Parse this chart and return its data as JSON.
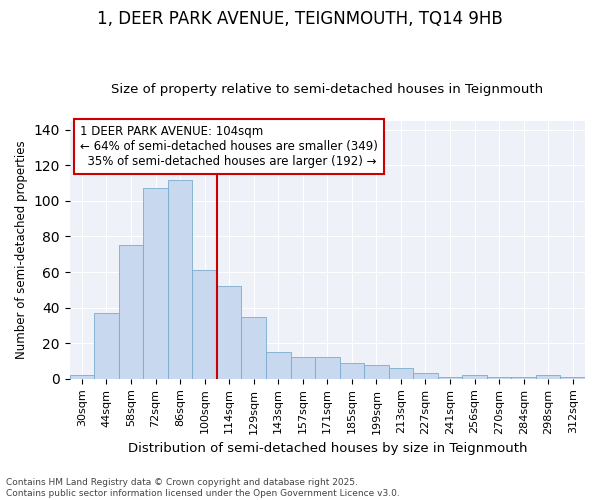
{
  "title": "1, DEER PARK AVENUE, TEIGNMOUTH, TQ14 9HB",
  "subtitle": "Size of property relative to semi-detached houses in Teignmouth",
  "xlabel": "Distribution of semi-detached houses by size in Teignmouth",
  "ylabel": "Number of semi-detached properties",
  "categories": [
    "30sqm",
    "44sqm",
    "58sqm",
    "72sqm",
    "86sqm",
    "100sqm",
    "114sqm",
    "129sqm",
    "143sqm",
    "157sqm",
    "171sqm",
    "185sqm",
    "199sqm",
    "213sqm",
    "227sqm",
    "241sqm",
    "256sqm",
    "270sqm",
    "284sqm",
    "298sqm",
    "312sqm"
  ],
  "values": [
    2,
    37,
    75,
    107,
    112,
    61,
    52,
    35,
    15,
    12,
    12,
    9,
    8,
    6,
    3,
    1,
    2,
    1,
    1,
    2,
    1
  ],
  "bar_color": "#c8d8ee",
  "bar_edge_color": "#7aabcf",
  "property_label": "1 DEER PARK AVENUE: 104sqm",
  "smaller_pct": 64,
  "smaller_count": 349,
  "larger_pct": 35,
  "larger_count": 192,
  "vline_bin": 5,
  "ylim": [
    0,
    145
  ],
  "yticks": [
    0,
    20,
    40,
    60,
    80,
    100,
    120,
    140
  ],
  "footer_line1": "Contains HM Land Registry data © Crown copyright and database right 2025.",
  "footer_line2": "Contains public sector information licensed under the Open Government Licence v3.0.",
  "bg_color": "#eef2f8",
  "grid_color": "#ffffff",
  "annotation_box_color": "#cc0000",
  "title_fontsize": 12,
  "subtitle_fontsize": 9.5,
  "ylabel_fontsize": 8.5,
  "xlabel_fontsize": 9.5,
  "tick_fontsize": 8,
  "footer_fontsize": 6.5,
  "annot_fontsize": 8.5
}
